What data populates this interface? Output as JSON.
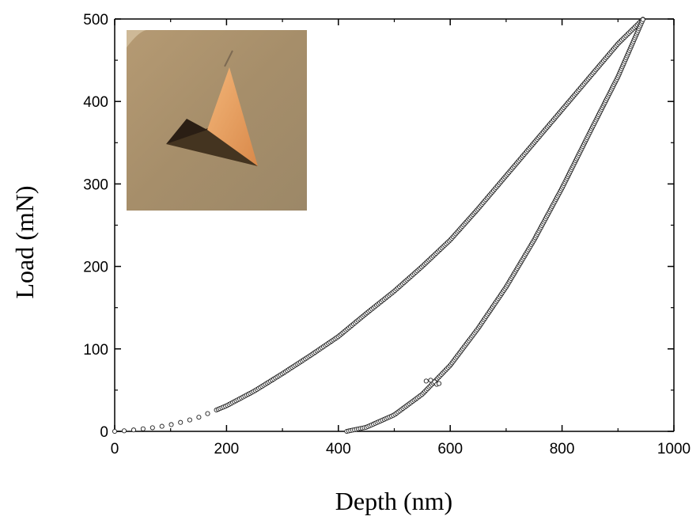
{
  "chart_data": {
    "type": "scatter",
    "title": "",
    "xlabel": "Depth (nm)",
    "ylabel": "Load (mN)",
    "xlim": [
      0,
      1000
    ],
    "ylim": [
      0,
      500
    ],
    "xticks": [
      0,
      200,
      400,
      600,
      800,
      1000
    ],
    "yticks": [
      0,
      100,
      200,
      300,
      400,
      500
    ],
    "xtick_labels": [
      "0",
      "200",
      "400",
      "600",
      "800",
      "1000"
    ],
    "ytick_labels": [
      "0",
      "100",
      "200",
      "300",
      "400",
      "500"
    ],
    "grid": false,
    "legend": "none",
    "marker": "open-circle",
    "inset": {
      "kind": "photo",
      "content": "optical micrograph of triangular indent impression",
      "placement": "top-left"
    },
    "series": [
      {
        "segment": "loading",
        "x": [
          0,
          25,
          50,
          75,
          100,
          125,
          150,
          175,
          200,
          250,
          300,
          350,
          400,
          450,
          500,
          550,
          600,
          650,
          700,
          750,
          800,
          850,
          900,
          945
        ],
        "y": [
          0,
          1,
          3,
          5,
          8,
          12,
          17,
          24,
          31,
          49,
          70,
          92,
          115,
          143,
          170,
          200,
          232,
          270,
          310,
          350,
          390,
          430,
          470,
          500
        ]
      },
      {
        "segment": "unloading",
        "x": [
          415,
          450,
          500,
          550,
          600,
          650,
          700,
          750,
          800,
          850,
          900,
          945
        ],
        "y": [
          0,
          5,
          20,
          45,
          80,
          125,
          175,
          232,
          295,
          363,
          430,
          500
        ]
      }
    ],
    "outliers": {
      "x": [
        557,
        565,
        572,
        576,
        580
      ],
      "y": [
        61,
        62,
        60,
        57,
        58
      ]
    }
  }
}
